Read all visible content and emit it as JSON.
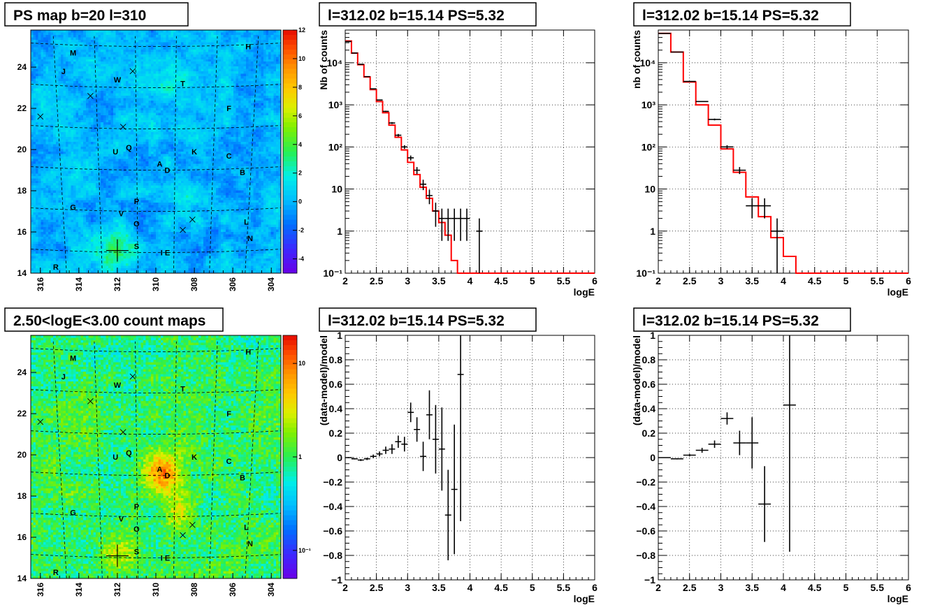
{
  "maps": [
    {
      "title": "PS map b=20 l=310",
      "scale": "linear",
      "colorbar_ticks": [
        "12",
        "10",
        "8",
        "6",
        "4",
        "2",
        "0",
        "-2",
        "-4"
      ],
      "colorbar_range": [
        -5,
        12
      ]
    },
    {
      "title": "2.50<logE<3.00 count maps",
      "scale": "log",
      "colorbar_ticks": [
        "10",
        "1",
        "10⁻¹"
      ],
      "colorbar_values": [
        10,
        1,
        0.1
      ]
    }
  ],
  "map_axes": {
    "l_ticks": [
      "316",
      "314",
      "312",
      "310",
      "308",
      "306",
      "304"
    ],
    "b_ticks": [
      "24",
      "22",
      "20",
      "18",
      "16",
      "14"
    ],
    "l_range": [
      316.5,
      303.5
    ],
    "b_range": [
      14,
      25.8
    ]
  },
  "sources": [
    {
      "label": "M",
      "l": 314.3,
      "b": 24.7
    },
    {
      "label": "H",
      "l": 305.2,
      "b": 25.0
    },
    {
      "label": "J",
      "l": 314.8,
      "b": 23.8
    },
    {
      "label": "W",
      "l": 312.0,
      "b": 23.4
    },
    {
      "label": "T",
      "l": 308.6,
      "b": 23.2
    },
    {
      "label": "F",
      "l": 306.2,
      "b": 22.0
    },
    {
      "label": "U",
      "l": 312.1,
      "b": 19.9
    },
    {
      "label": "Q",
      "l": 311.4,
      "b": 20.1
    },
    {
      "label": "K",
      "l": 308.0,
      "b": 19.9
    },
    {
      "label": "C",
      "l": 306.2,
      "b": 19.7
    },
    {
      "label": "A",
      "l": 309.8,
      "b": 19.3
    },
    {
      "label": "D",
      "l": 309.4,
      "b": 19.0
    },
    {
      "label": "B",
      "l": 305.5,
      "b": 18.9
    },
    {
      "label": "G",
      "l": 314.3,
      "b": 17.2
    },
    {
      "label": "P",
      "l": 311.0,
      "b": 17.5
    },
    {
      "label": "V",
      "l": 311.8,
      "b": 16.9
    },
    {
      "label": "L",
      "l": 305.3,
      "b": 16.5
    },
    {
      "label": "O",
      "l": 311.0,
      "b": 16.4
    },
    {
      "label": "N",
      "l": 305.1,
      "b": 15.7
    },
    {
      "label": "S",
      "l": 311.0,
      "b": 15.3
    },
    {
      "label": "I",
      "l": 309.7,
      "b": 15.0
    },
    {
      "label": "E",
      "l": 309.4,
      "b": 15.0
    },
    {
      "label": "R",
      "l": 315.2,
      "b": 14.3
    }
  ],
  "crosses": [
    {
      "l": 311.2,
      "b": 23.8
    },
    {
      "l": 313.4,
      "b": 22.6
    },
    {
      "l": 311.7,
      "b": 21.1
    },
    {
      "l": 316.0,
      "b": 21.6
    },
    {
      "l": 308.1,
      "b": 16.6
    },
    {
      "l": 308.6,
      "b": 16.1
    }
  ],
  "main_cross": {
    "l": 312.0,
    "b": 15.1
  },
  "chart_data": [
    {
      "type": "line",
      "title": "l=312.02 b=15.14 PS=5.32",
      "xlabel": "logE",
      "ylabel": "Nb of counts",
      "yscale": "log",
      "xlim": [
        2,
        6
      ],
      "ylim": [
        0.1,
        60000
      ],
      "x_ticks": [
        "2",
        "2.5",
        "3",
        "3.5",
        "4",
        "4.5",
        "5",
        "5.5",
        "6"
      ],
      "y_ticks": [
        {
          "v": 0.1,
          "label": "10⁻¹"
        },
        {
          "v": 1,
          "label": "1"
        },
        {
          "v": 10,
          "label": "10"
        },
        {
          "v": 100,
          "label": "10²"
        },
        {
          "v": 1000,
          "label": "10³"
        },
        {
          "v": 10000,
          "label": "10⁴"
        }
      ],
      "bin_width": 0.1,
      "model": [
        33000,
        17000,
        9000,
        4600,
        2300,
        1200,
        650,
        330,
        170,
        85,
        43,
        22,
        11,
        6,
        3,
        1.6,
        0.8,
        0.2,
        0.1,
        0.1,
        0.1,
        0.1,
        0.1,
        0.1,
        0.1,
        0.1,
        0.1,
        0.1,
        0.1,
        0.1,
        0.1,
        0.1,
        0.1,
        0.1,
        0.1,
        0.1,
        0.1,
        0.1,
        0.1,
        0.1
      ],
      "data": [
        {
          "x": 2.05,
          "y": 32000
        },
        {
          "x": 2.15,
          "y": 17000
        },
        {
          "x": 2.25,
          "y": 9200
        },
        {
          "x": 2.35,
          "y": 4700
        },
        {
          "x": 2.45,
          "y": 2400
        },
        {
          "x": 2.55,
          "y": 1300
        },
        {
          "x": 2.65,
          "y": 700
        },
        {
          "x": 2.75,
          "y": 370
        },
        {
          "x": 2.85,
          "y": 190
        },
        {
          "x": 2.95,
          "y": 100
        },
        {
          "x": 3.05,
          "y": 55
        },
        {
          "x": 3.15,
          "y": 28
        },
        {
          "x": 3.25,
          "y": 13
        },
        {
          "x": 3.35,
          "y": 7
        },
        {
          "x": 3.45,
          "y": 3
        },
        {
          "x": 3.55,
          "y": 2
        },
        {
          "x": 3.65,
          "y": 2
        },
        {
          "x": 3.75,
          "y": 2
        },
        {
          "x": 3.85,
          "y": 2
        },
        {
          "x": 3.95,
          "y": 2
        },
        {
          "x": 4.15,
          "y": 1
        }
      ]
    },
    {
      "type": "line",
      "title": "l=312.02 b=15.14 PS=5.32",
      "xlabel": "logE",
      "ylabel": "nb of counts",
      "yscale": "log",
      "xlim": [
        2,
        6
      ],
      "ylim": [
        0.1,
        60000
      ],
      "x_ticks": [
        "2",
        "2.5",
        "3",
        "3.5",
        "4",
        "4.5",
        "5",
        "5.5",
        "6"
      ],
      "y_ticks": [
        {
          "v": 0.1,
          "label": "10⁻¹"
        },
        {
          "v": 1,
          "label": "1"
        },
        {
          "v": 10,
          "label": "10"
        },
        {
          "v": 100,
          "label": "10²"
        },
        {
          "v": 1000,
          "label": "10³"
        },
        {
          "v": 10000,
          "label": "10⁴"
        }
      ],
      "bin_width": 0.2,
      "model": [
        50000,
        18000,
        3500,
        1000,
        330,
        90,
        25,
        6.5,
        2.2,
        0.7,
        0.25,
        0.1,
        0.1,
        0.1,
        0.1,
        0.1,
        0.1,
        0.1,
        0.1,
        0.1
      ],
      "data": [
        {
          "x": 2.1,
          "y": 50000
        },
        {
          "x": 2.3,
          "y": 18000
        },
        {
          "x": 2.5,
          "y": 3600
        },
        {
          "x": 2.7,
          "y": 1200
        },
        {
          "x": 2.9,
          "y": 450
        },
        {
          "x": 3.1,
          "y": 100
        },
        {
          "x": 3.3,
          "y": 28
        },
        {
          "x": 3.5,
          "y": 4
        },
        {
          "x": 3.7,
          "y": 4
        },
        {
          "x": 3.9,
          "y": 1
        }
      ]
    },
    {
      "type": "scatter",
      "title": "l=312.02 b=15.14 PS=5.32",
      "xlabel": "logE",
      "ylabel": "(data-model)/model",
      "yscale": "linear",
      "xlim": [
        2,
        6
      ],
      "ylim": [
        -1,
        1
      ],
      "x_ticks": [
        "2",
        "2.5",
        "3",
        "3.5",
        "4",
        "4.5",
        "5",
        "5.5",
        "6"
      ],
      "y_ticks": [
        {
          "v": 1,
          "label": "1"
        },
        {
          "v": 0.8,
          "label": "0.8"
        },
        {
          "v": 0.6,
          "label": "0.6"
        },
        {
          "v": 0.4,
          "label": "0.4"
        },
        {
          "v": 0.2,
          "label": "0.2"
        },
        {
          "v": 0,
          "label": "0"
        },
        {
          "v": -0.2,
          "label": "−0.2"
        },
        {
          "v": -0.4,
          "label": "−0.4"
        },
        {
          "v": -0.6,
          "label": "−0.6"
        },
        {
          "v": -0.8,
          "label": "−0.8"
        },
        {
          "v": -1,
          "label": "−1"
        }
      ],
      "bin_width": 0.1,
      "data": [
        {
          "x": 2.05,
          "y": 0.0,
          "e": 0.005
        },
        {
          "x": 2.15,
          "y": -0.01,
          "e": 0.005
        },
        {
          "x": 2.25,
          "y": -0.02,
          "e": 0.008
        },
        {
          "x": 2.35,
          "y": -0.01,
          "e": 0.01
        },
        {
          "x": 2.45,
          "y": 0.01,
          "e": 0.015
        },
        {
          "x": 2.55,
          "y": 0.03,
          "e": 0.02
        },
        {
          "x": 2.65,
          "y": 0.06,
          "e": 0.03
        },
        {
          "x": 2.75,
          "y": 0.07,
          "e": 0.04
        },
        {
          "x": 2.85,
          "y": 0.13,
          "e": 0.05
        },
        {
          "x": 2.95,
          "y": 0.11,
          "e": 0.06
        },
        {
          "x": 3.05,
          "y": 0.37,
          "e": 0.08
        },
        {
          "x": 3.15,
          "y": 0.23,
          "e": 0.1
        },
        {
          "x": 3.25,
          "y": 0.01,
          "e": 0.12
        },
        {
          "x": 3.35,
          "y": 0.35,
          "e": 0.2
        },
        {
          "x": 3.45,
          "y": 0.15,
          "e": 0.28
        },
        {
          "x": 3.55,
          "y": 0.07,
          "e": 0.34
        },
        {
          "x": 3.65,
          "y": -0.47,
          "e": 0.37
        },
        {
          "x": 3.75,
          "y": -0.26,
          "e": 0.53
        },
        {
          "x": 3.85,
          "y": 0.68,
          "e": 1.2
        }
      ]
    },
    {
      "type": "scatter",
      "title": "l=312.02 b=15.14 PS=5.32",
      "xlabel": "logE",
      "ylabel": "(data-model)/model",
      "yscale": "linear",
      "xlim": [
        2,
        6
      ],
      "ylim": [
        -1,
        1
      ],
      "x_ticks": [
        "2",
        "2.5",
        "3",
        "3.5",
        "4",
        "4.5",
        "5",
        "5.5",
        "6"
      ],
      "y_ticks": [
        {
          "v": 1,
          "label": "1"
        },
        {
          "v": 0.8,
          "label": "0.8"
        },
        {
          "v": 0.6,
          "label": "0.6"
        },
        {
          "v": 0.4,
          "label": "0.4"
        },
        {
          "v": 0.2,
          "label": "0.2"
        },
        {
          "v": 0,
          "label": "0"
        },
        {
          "v": -0.2,
          "label": "−0.2"
        },
        {
          "v": -0.4,
          "label": "−0.4"
        },
        {
          "v": -0.6,
          "label": "−0.6"
        },
        {
          "v": -0.8,
          "label": "−0.8"
        },
        {
          "v": -1,
          "label": "−1"
        }
      ],
      "bin_width": 0.2,
      "data": [
        {
          "x": 2.1,
          "y": 0.0,
          "e": 0.003
        },
        {
          "x": 2.3,
          "y": -0.01,
          "e": 0.005
        },
        {
          "x": 2.5,
          "y": 0.02,
          "e": 0.01
        },
        {
          "x": 2.7,
          "y": 0.06,
          "e": 0.02
        },
        {
          "x": 2.9,
          "y": 0.11,
          "e": 0.03
        },
        {
          "x": 3.1,
          "y": 0.32,
          "e": 0.05
        },
        {
          "x": 3.3,
          "y": 0.12,
          "e": 0.1
        },
        {
          "x": 3.5,
          "y": 0.12,
          "e": 0.21
        },
        {
          "x": 3.7,
          "y": -0.38,
          "e": 0.31
        },
        {
          "x": 4.1,
          "y": 0.43,
          "e": 1.2
        }
      ]
    }
  ],
  "colors": {
    "model_line": "#ff0000",
    "data_marker": "#000000",
    "grid": "#000000"
  }
}
